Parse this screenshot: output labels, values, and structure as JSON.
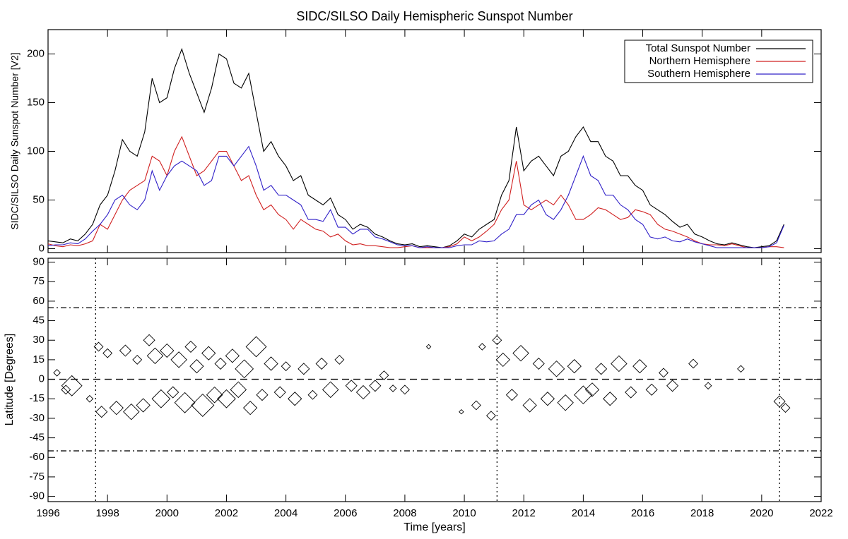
{
  "chart_data": [
    {
      "type": "line",
      "title": "SIDC/SILSO Daily Hemispheric Sunspot Number",
      "ylabel": "SIDC/SILSO Daily Sunspot Number [V2]",
      "x": [
        1996,
        1996.25,
        1996.5,
        1996.75,
        1997,
        1997.25,
        1997.5,
        1997.75,
        1998,
        1998.25,
        1998.5,
        1998.75,
        1999,
        1999.25,
        1999.5,
        1999.75,
        2000,
        2000.25,
        2000.5,
        2000.75,
        2001,
        2001.25,
        2001.5,
        2001.75,
        2002,
        2002.25,
        2002.5,
        2002.75,
        2003,
        2003.25,
        2003.5,
        2003.75,
        2004,
        2004.25,
        2004.5,
        2004.75,
        2005,
        2005.25,
        2005.5,
        2005.75,
        2006,
        2006.25,
        2006.5,
        2006.75,
        2007,
        2007.25,
        2007.5,
        2007.75,
        2008,
        2008.25,
        2008.5,
        2008.75,
        2009,
        2009.25,
        2009.5,
        2009.75,
        2010,
        2010.25,
        2010.5,
        2010.75,
        2011,
        2011.25,
        2011.5,
        2011.75,
        2012,
        2012.25,
        2012.5,
        2012.75,
        2013,
        2013.25,
        2013.5,
        2013.75,
        2014,
        2014.25,
        2014.5,
        2014.75,
        2015,
        2015.25,
        2015.5,
        2015.75,
        2016,
        2016.25,
        2016.5,
        2016.75,
        2017,
        2017.25,
        2017.5,
        2017.75,
        2018,
        2018.25,
        2018.5,
        2018.75,
        2019,
        2019.25,
        2019.5,
        2019.75,
        2020,
        2020.25,
        2020.5,
        2020.75
      ],
      "series": [
        {
          "name": "Total Sunspot Number",
          "color": "#000000",
          "values": [
            8,
            7,
            6,
            10,
            8,
            15,
            25,
            45,
            55,
            80,
            112,
            100,
            95,
            120,
            175,
            150,
            155,
            185,
            205,
            180,
            160,
            140,
            165,
            200,
            195,
            170,
            165,
            180,
            140,
            100,
            110,
            95,
            85,
            70,
            75,
            55,
            50,
            45,
            52,
            35,
            30,
            20,
            25,
            22,
            15,
            12,
            8,
            5,
            4,
            5,
            2,
            3,
            2,
            1,
            3,
            8,
            15,
            12,
            20,
            25,
            30,
            55,
            70,
            125,
            80,
            90,
            95,
            85,
            75,
            95,
            100,
            115,
            125,
            110,
            110,
            95,
            90,
            75,
            75,
            65,
            60,
            45,
            40,
            35,
            28,
            22,
            25,
            15,
            12,
            8,
            5,
            4,
            6,
            4,
            2,
            1,
            2,
            3,
            8,
            25
          ]
        },
        {
          "name": "Northern Hemisphere",
          "color": "#d02020",
          "values": [
            5,
            3,
            2,
            4,
            3,
            5,
            8,
            25,
            20,
            35,
            50,
            60,
            65,
            70,
            95,
            90,
            75,
            100,
            115,
            95,
            75,
            80,
            90,
            100,
            100,
            85,
            70,
            75,
            55,
            40,
            45,
            35,
            30,
            20,
            30,
            25,
            20,
            18,
            12,
            15,
            8,
            4,
            5,
            3,
            3,
            2,
            1,
            1,
            2,
            3,
            1,
            1,
            1,
            1,
            2,
            5,
            12,
            8,
            12,
            18,
            25,
            40,
            50,
            90,
            45,
            40,
            45,
            50,
            45,
            55,
            45,
            30,
            30,
            35,
            42,
            40,
            35,
            30,
            32,
            40,
            38,
            35,
            25,
            20,
            18,
            15,
            12,
            8,
            5,
            4,
            4,
            3,
            5,
            3,
            1,
            1,
            1,
            2,
            2,
            1
          ]
        },
        {
          "name": "Southern Hemisphere",
          "color": "#3020c8",
          "values": [
            3,
            4,
            4,
            6,
            5,
            10,
            18,
            25,
            35,
            50,
            55,
            45,
            40,
            50,
            80,
            60,
            75,
            85,
            90,
            85,
            80,
            65,
            70,
            95,
            95,
            85,
            95,
            105,
            85,
            60,
            65,
            55,
            55,
            50,
            45,
            30,
            30,
            28,
            40,
            22,
            22,
            15,
            20,
            20,
            12,
            10,
            7,
            4,
            3,
            3,
            1,
            2,
            1,
            1,
            1,
            3,
            4,
            4,
            8,
            7,
            8,
            15,
            20,
            35,
            35,
            45,
            50,
            35,
            30,
            40,
            55,
            75,
            95,
            75,
            70,
            55,
            55,
            45,
            40,
            30,
            25,
            12,
            10,
            12,
            8,
            7,
            10,
            7,
            5,
            3,
            1,
            1,
            1,
            1,
            1,
            1,
            1,
            2,
            6,
            24
          ]
        }
      ],
      "xlim": [
        1996,
        2022
      ],
      "xticks": [
        1996,
        1998,
        2000,
        2002,
        2004,
        2006,
        2008,
        2010,
        2012,
        2014,
        2016,
        2018,
        2020,
        2022
      ],
      "ylim": [
        -4,
        225
      ],
      "yticks": [
        0,
        50,
        100,
        150,
        200
      ],
      "legend": "upper right"
    },
    {
      "type": "scatter",
      "xlabel": "Time [years]",
      "ylabel": "Latitude [Degrees]",
      "color": "#000000",
      "x": [
        1996.3,
        1996.8,
        1996.6,
        1997.4,
        1997.7,
        1997.8,
        1998.0,
        1998.3,
        1998.6,
        1998.8,
        1999.0,
        1999.2,
        1999.4,
        1999.6,
        1999.8,
        2000.0,
        2000.2,
        2000.4,
        2000.6,
        2000.8,
        2001.0,
        2001.2,
        2001.4,
        2001.6,
        2001.8,
        2002.0,
        2002.2,
        2002.4,
        2002.6,
        2002.8,
        2003.0,
        2003.2,
        2003.5,
        2003.8,
        2004.0,
        2004.3,
        2004.6,
        2004.9,
        2005.2,
        2005.5,
        2005.8,
        2006.2,
        2006.6,
        2007.0,
        2007.3,
        2007.6,
        2008.0,
        2008.8,
        2009.9,
        2010.4,
        2010.6,
        2010.9,
        2011.1,
        2011.3,
        2011.6,
        2011.9,
        2012.2,
        2012.5,
        2012.8,
        2013.1,
        2013.4,
        2013.7,
        2014.0,
        2014.3,
        2014.6,
        2014.9,
        2015.2,
        2015.6,
        2015.9,
        2016.3,
        2016.7,
        2017.0,
        2017.7,
        2018.2,
        2019.3,
        2020.6,
        2020.8
      ],
      "values": [
        5,
        -5,
        -8,
        -15,
        25,
        -25,
        20,
        -22,
        22,
        -25,
        15,
        -20,
        30,
        18,
        -15,
        22,
        -10,
        15,
        -18,
        25,
        10,
        -20,
        20,
        -12,
        12,
        -15,
        18,
        -8,
        8,
        -22,
        25,
        -12,
        12,
        -10,
        10,
        -15,
        8,
        -12,
        12,
        -8,
        15,
        -5,
        -10,
        -5,
        3,
        -7,
        -8,
        25,
        -25,
        -20,
        25,
        -28,
        30,
        15,
        -12,
        20,
        -20,
        12,
        -15,
        8,
        -18,
        10,
        -12,
        -8,
        8,
        -15,
        12,
        -10,
        10,
        -8,
        5,
        -5,
        12,
        -5,
        8,
        -17,
        -22
      ],
      "sizes": [
        2,
        8,
        3,
        2,
        3,
        4,
        3,
        5,
        4,
        6,
        3,
        5,
        4,
        6,
        7,
        5,
        4,
        6,
        8,
        4,
        5,
        9,
        5,
        6,
        4,
        7,
        5,
        6,
        7,
        5,
        8,
        4,
        5,
        4,
        3,
        5,
        4,
        3,
        4,
        6,
        3,
        4,
        5,
        4,
        3,
        2,
        3,
        1,
        1,
        3,
        2,
        3,
        3,
        5,
        4,
        6,
        5,
        4,
        5,
        6,
        6,
        5,
        7,
        5,
        4,
        5,
        6,
        4,
        5,
        4,
        3,
        4,
        3,
        2,
        2,
        4,
        3
      ],
      "hlines": [
        {
          "value": 55,
          "style": "dashdot"
        },
        {
          "value": 0,
          "style": "dashed"
        },
        {
          "value": -55,
          "style": "dashdot"
        }
      ],
      "vlines": [
        {
          "value": 1997.6,
          "style": "dotted"
        },
        {
          "value": 2011.1,
          "style": "dotted"
        },
        {
          "value": 2020.6,
          "style": "dotted"
        }
      ],
      "xlim": [
        1996,
        2022
      ],
      "xticks": [
        1996,
        1998,
        2000,
        2002,
        2004,
        2006,
        2008,
        2010,
        2012,
        2014,
        2016,
        2018,
        2020,
        2022
      ],
      "ylim": [
        -94,
        93
      ],
      "yticks": [
        -90,
        -75,
        -60,
        -45,
        -30,
        -15,
        0,
        15,
        30,
        45,
        60,
        75,
        90
      ]
    }
  ]
}
